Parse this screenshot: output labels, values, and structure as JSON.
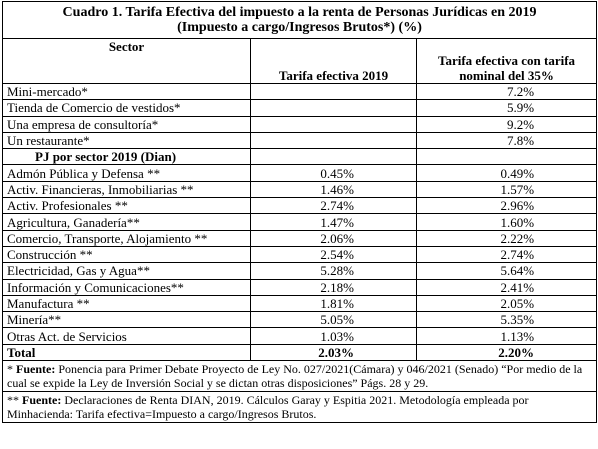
{
  "title": {
    "line1": "Cuadro 1. Tarifa Efectiva del impuesto a la renta de Personas Jurídicas en 2019",
    "line2": "(Impuesto a cargo/Ingresos Brutos*) (%)"
  },
  "header": {
    "sector": "Sector",
    "rate_2019": "Tarifa efectiva 2019",
    "rate_35": "Tarifa efectiva con tarifa nominal del 35%"
  },
  "rows_a": [
    {
      "label": "Mini-mercado*",
      "rate_35": "7.2%"
    },
    {
      "label": "Tienda de Comercio de vestidos*",
      "rate_35": "5.9%"
    },
    {
      "label": "Una empresa de consultoría*",
      "rate_35": "9.2%"
    },
    {
      "label": "Un restaurante*",
      "rate_35": "7.8%"
    }
  ],
  "section": "PJ por sector 2019 (Dian)",
  "rows_b": [
    {
      "label": "Admón Pública y Defensa **",
      "rate_2019": "0.45%",
      "rate_35": "0.49%"
    },
    {
      "label": "Activ. Financieras, Inmobiliarias **",
      "rate_2019": "1.46%",
      "rate_35": "1.57%"
    },
    {
      "label": "Activ. Profesionales **",
      "rate_2019": "2.74%",
      "rate_35": "2.96%"
    },
    {
      "label": "Agricultura, Ganadería**",
      "rate_2019": "1.47%",
      "rate_35": "1.60%"
    },
    {
      "label": "Comercio, Transporte, Alojamiento **",
      "rate_2019": "2.06%",
      "rate_35": "2.22%"
    },
    {
      "label": "Construcción **",
      "rate_2019": "2.54%",
      "rate_35": "2.74%"
    },
    {
      "label": "Electricidad, Gas y Agua**",
      "rate_2019": "5.28%",
      "rate_35": "5.64%"
    },
    {
      "label": "Información y Comunicaciones**",
      "rate_2019": "2.18%",
      "rate_35": "2.41%"
    },
    {
      "label": "Manufactura **",
      "rate_2019": "1.81%",
      "rate_35": "2.05%"
    },
    {
      "label": "Minería**",
      "rate_2019": "5.05%",
      "rate_35": "5.35%"
    },
    {
      "label": "Otras Act. de Servicios",
      "rate_2019": "1.03%",
      "rate_35": "1.13%"
    }
  ],
  "total": {
    "label": "Total",
    "rate_2019": "2.03%",
    "rate_35": "2.20%"
  },
  "notes": [
    {
      "mark": "*",
      "label": "Fuente:",
      "text": "Ponencia para Primer Debate Proyecto de Ley No. 027/2021(Cámara) y 046/2021 (Senado) “Por medio de la cual se expide la Ley de Inversión Social y se dictan otras disposiciones” Págs. 28 y 29."
    },
    {
      "mark": "**",
      "label": "Fuente:",
      "text": "Declaraciones de Renta DIAN, 2019. Cálculos Garay y Espitia 2021. Metodología empleada por Minhacienda: Tarifa efectiva=Impuesto a cargo/Ingresos Brutos."
    }
  ]
}
